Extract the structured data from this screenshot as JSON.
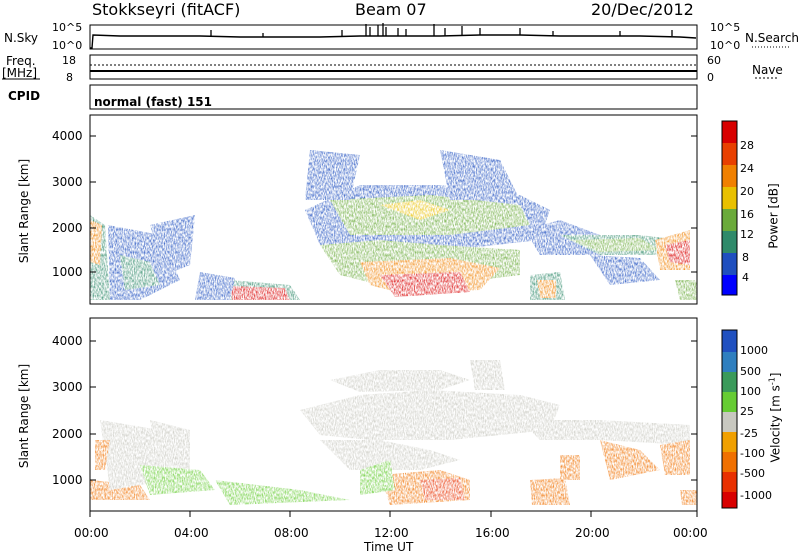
{
  "header": {
    "station": "Stokkseyri (fitACF)",
    "beam": "Beam 07",
    "date": "20/Dec/2012"
  },
  "labels": {
    "nsky": "N.Sky",
    "nsearch": "N.Search",
    "freq_line1": "Freq.",
    "freq_line2": "[MHz]",
    "nave": "Nave",
    "cpid": "CPID",
    "cpid_value": "normal (fast) 151",
    "ytick_1e5_left": "10^5",
    "ytick_1e0_left": "10^0",
    "ytick_1e5_right": "10^5",
    "ytick_1e0_right": "10^0",
    "freq_ticks": [
      "18",
      "8"
    ],
    "nave_ticks": [
      "60",
      "0"
    ]
  },
  "chart_data": [
    {
      "type": "heatmap",
      "name": "power",
      "ylabel": "Slant Range [km]",
      "xlabel": "",
      "yticks": [
        "1000",
        "2000",
        "3000",
        "4000"
      ],
      "ylim": [
        200,
        4500
      ],
      "colorbar": {
        "label": "Power [dB]",
        "ticks": [
          "4",
          "8",
          "12",
          "16",
          "20",
          "24",
          "28"
        ],
        "colors": [
          "#0000ff",
          "#1f4fbf",
          "#2f8a6a",
          "#6aaa3a",
          "#e8c000",
          "#f08000",
          "#e84000",
          "#d80000"
        ]
      }
    },
    {
      "type": "heatmap",
      "name": "velocity",
      "ylabel": "Slant Range [km]",
      "xlabel": "Time UT",
      "xticks": [
        "00:00",
        "04:00",
        "08:00",
        "12:00",
        "16:00",
        "20:00",
        "00:00"
      ],
      "yticks": [
        "1000",
        "2000",
        "3000",
        "4000"
      ],
      "ylim": [
        200,
        4500
      ],
      "colorbar": {
        "label": "Velocity",
        "unit": "[m s",
        "unit_sup": "-1",
        "unit_end": "]",
        "ticks": [
          "1000",
          "500",
          "100",
          "25",
          "-25",
          "-100",
          "-500",
          "-1000"
        ],
        "colors": [
          "#2050c0",
          "#2f7fbf",
          "#3a9a5a",
          "#66cc33",
          "#c8c8c0",
          "#f0a000",
          "#f07000",
          "#e83000",
          "#d80000"
        ]
      }
    }
  ]
}
